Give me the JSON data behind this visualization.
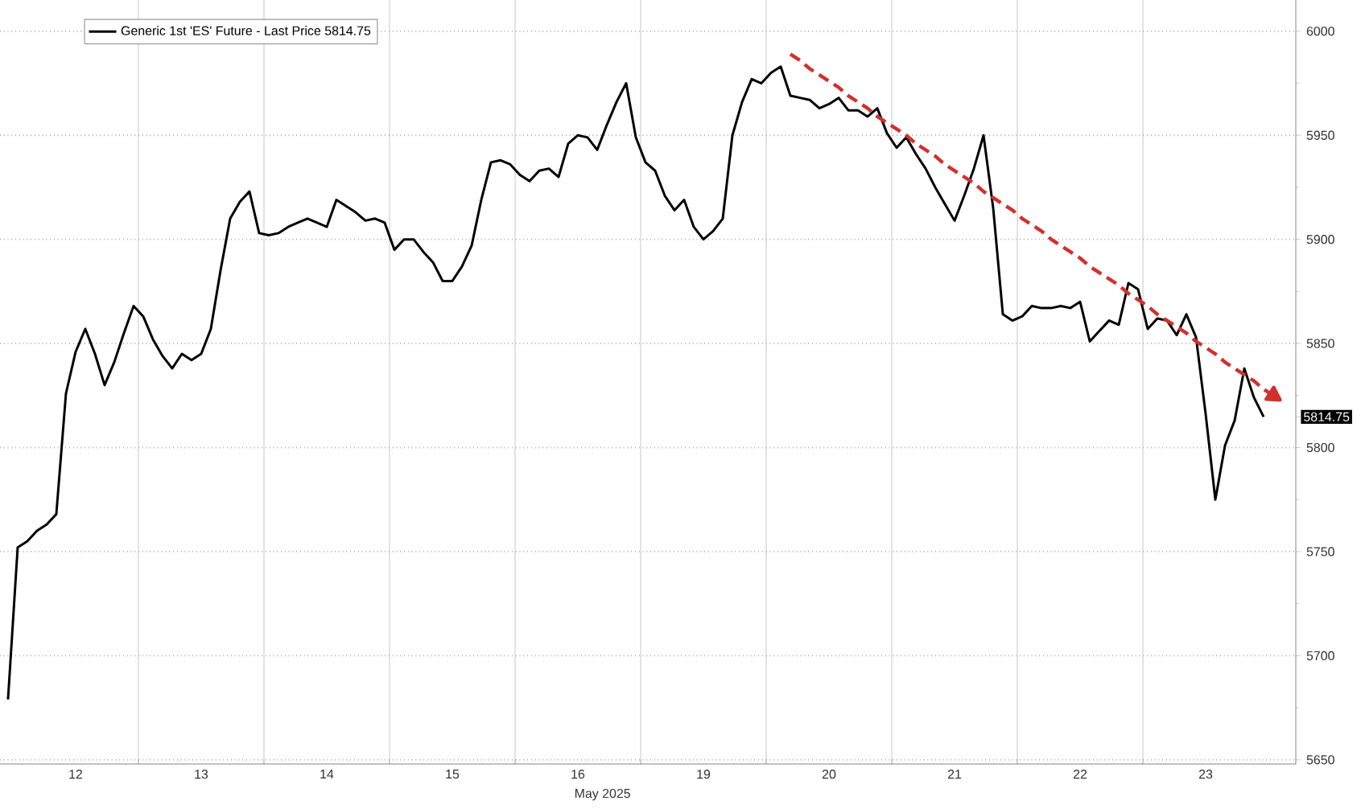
{
  "chart_data": {
    "type": "line",
    "xlabel": "May 2025",
    "categories": [
      null,
      null,
      null,
      null,
      null,
      null,
      null,
      "12",
      null,
      null,
      null,
      null,
      null,
      null,
      null,
      null,
      null,
      null,
      null,
      null,
      "13",
      null,
      null,
      null,
      null,
      null,
      null,
      null,
      null,
      null,
      null,
      null,
      null,
      "14",
      null,
      null,
      null,
      null,
      null,
      null,
      null,
      null,
      null,
      null,
      null,
      null,
      "15",
      null,
      null,
      null,
      null,
      null,
      null,
      null,
      null,
      null,
      null,
      null,
      null,
      "16",
      null,
      null,
      null,
      null,
      null,
      null,
      null,
      null,
      null,
      null,
      null,
      null,
      "19",
      null,
      null,
      null,
      null,
      null,
      null,
      null,
      null,
      null,
      null,
      null,
      null,
      "20",
      null,
      null,
      null,
      null,
      null,
      null,
      null,
      null,
      null,
      null,
      null,
      null,
      "21",
      null,
      null,
      null,
      null,
      null,
      null,
      null,
      null,
      null,
      null,
      null,
      null,
      "22",
      null,
      null,
      null,
      null,
      null,
      null,
      null,
      null,
      null,
      null,
      null,
      null,
      "23",
      null,
      null,
      null,
      null,
      null,
      null,
      null,
      null
    ],
    "ylim": [
      5648,
      6015
    ],
    "yticks": [
      5650,
      5700,
      5750,
      5800,
      5850,
      5900,
      5950,
      6000,
      {
        "value": 5814.75,
        "label": "5814.75"
      }
    ],
    "grid": true,
    "legend": "top left",
    "series": [
      {
        "name": "Generic 1st 'ES' Future - Last Price 5814.75",
        "color": "#000000",
        "values": [
          5679,
          5752,
          5755,
          5760,
          5763,
          5768,
          5826,
          5846,
          5857,
          5845,
          5830,
          5841,
          5855,
          5868,
          5863,
          5852,
          5844,
          5838,
          5845,
          5842,
          5845,
          5857,
          5885,
          5910,
          5918,
          5923,
          5903,
          5902,
          5903,
          5906,
          5908,
          5910,
          5908,
          5906,
          5919,
          5916,
          5913,
          5909,
          5910,
          5908,
          5895,
          5900,
          5900,
          5894,
          5889,
          5880,
          5880,
          5887,
          5897,
          5919,
          5937,
          5938,
          5936,
          5931,
          5928,
          5933,
          5934,
          5930,
          5946,
          5950,
          5949,
          5943,
          5955,
          5966,
          5975,
          5949,
          5937,
          5933,
          5921,
          5914,
          5919,
          5906,
          5900,
          5904,
          5910,
          5950,
          5966,
          5977,
          5975,
          5980,
          5983,
          5969,
          5968,
          5967,
          5963,
          5965,
          5968,
          5962,
          5962,
          5959,
          5963,
          5951,
          5944,
          5949,
          5941,
          5934,
          5925,
          5917,
          5909,
          5921,
          5934,
          5950,
          5915,
          5864,
          5861,
          5863,
          5868,
          5867,
          5867,
          5868,
          5867,
          5870,
          5851,
          5856,
          5861,
          5859,
          5879,
          5876,
          5857,
          5862,
          5861,
          5854,
          5864,
          5853,
          5816,
          5775,
          5801,
          5813,
          5838,
          5824,
          5814.75,
          null,
          null
        ]
      },
      {
        "type": "line",
        "color": "#d0312d",
        "line_style": "dashed",
        "values": [
          null,
          null,
          null,
          null,
          null,
          null,
          null,
          null,
          null,
          null,
          null,
          null,
          null,
          null,
          null,
          null,
          null,
          null,
          null,
          null,
          null,
          null,
          null,
          null,
          null,
          null,
          null,
          null,
          null,
          null,
          null,
          null,
          null,
          null,
          null,
          null,
          null,
          null,
          null,
          null,
          null,
          null,
          null,
          null,
          null,
          null,
          null,
          null,
          null,
          null,
          null,
          null,
          null,
          null,
          null,
          null,
          null,
          null,
          null,
          null,
          null,
          null,
          null,
          null,
          null,
          null,
          null,
          null,
          null,
          null,
          null,
          null,
          null,
          null,
          null,
          null,
          null,
          null,
          null,
          null,
          null,
          5989,
          5986,
          5982,
          5979,
          5976,
          5973,
          5969,
          5966,
          5963,
          5959,
          5956,
          5953,
          5950,
          5946,
          5943,
          5940,
          5936,
          5933,
          5930,
          5927,
          5923,
          5920,
          5917,
          5914,
          5910,
          5907,
          5904,
          5900,
          5897,
          5894,
          5891,
          5887,
          5884,
          5881,
          5878,
          5874,
          5871,
          5868,
          5864,
          5861,
          5858,
          5855,
          5851,
          5848,
          5845,
          5841,
          5838,
          5835,
          5832,
          5828,
          5825,
          null
        ]
      }
    ]
  }
}
